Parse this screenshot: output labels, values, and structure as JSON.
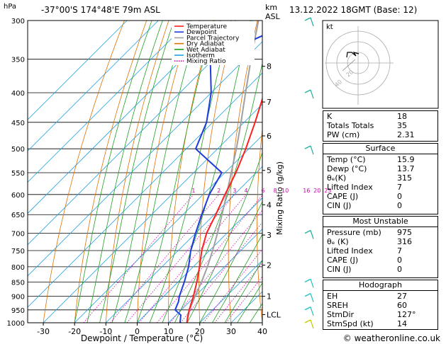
{
  "header": {
    "hpa_label": "hPa",
    "location": "-37°00'S  174°48'E  79m  ASL",
    "km_label": "km",
    "asl_label": "ASL",
    "datetime": "13.12.2022  18GMT  (Base: 12)"
  },
  "legend": [
    {
      "label": "Temperature",
      "color": "#ff2020",
      "style": "solid"
    },
    {
      "label": "Dewpoint",
      "color": "#1e3cdc",
      "style": "solid"
    },
    {
      "label": "Parcel Trajectory",
      "color": "#a0a0a0",
      "style": "solid"
    },
    {
      "label": "Dry Adiabat",
      "color": "#e07000",
      "style": "solid"
    },
    {
      "label": "Wet Adiabat",
      "color": "#20a020",
      "style": "solid"
    },
    {
      "label": "Isotherm",
      "color": "#20a0e0",
      "style": "solid"
    },
    {
      "label": "Mixing Ratio",
      "color": "#d000b0",
      "style": "dotted"
    }
  ],
  "chart_data": {
    "type": "skew-t",
    "xlabel": "Dewpoint / Temperature (°C)",
    "ylabel_right": "Mixing Ratio (g/kg)",
    "x_ticks": [
      -30,
      -20,
      -10,
      0,
      10,
      20,
      30,
      40
    ],
    "xlim": [
      -35,
      40
    ],
    "pressure_levels": [
      300,
      350,
      400,
      450,
      500,
      550,
      600,
      650,
      700,
      750,
      800,
      850,
      900,
      950,
      1000
    ],
    "ylim_hpa": [
      1000,
      300
    ],
    "height_km_ticks": [
      {
        "label": "8",
        "p": 360
      },
      {
        "label": "7",
        "p": 415
      },
      {
        "label": "6",
        "p": 475
      },
      {
        "label": "5",
        "p": 545
      },
      {
        "label": "4",
        "p": 625
      },
      {
        "label": "3",
        "p": 705
      },
      {
        "label": "2",
        "p": 795
      },
      {
        "label": "1",
        "p": 900
      },
      {
        "label": "LCL",
        "p": 968
      }
    ],
    "mixing_ratio_labels": [
      "1",
      "2",
      "3",
      "4",
      "6",
      "8",
      "10",
      "16",
      "20",
      "25"
    ],
    "mixing_ratio_values": [
      1,
      2,
      3,
      4,
      6,
      8,
      10,
      16,
      20,
      25
    ],
    "temperature": [
      {
        "p": 1000,
        "t": 15.9
      },
      {
        "p": 950,
        "t": 12.5
      },
      {
        "p": 900,
        "t": 9.5
      },
      {
        "p": 850,
        "t": 6.0
      },
      {
        "p": 800,
        "t": 2.0
      },
      {
        "p": 750,
        "t": -2.5
      },
      {
        "p": 700,
        "t": -6.5
      },
      {
        "p": 650,
        "t": -9.5
      },
      {
        "p": 600,
        "t": -13.0
      },
      {
        "p": 550,
        "t": -16.5
      },
      {
        "p": 500,
        "t": -21.0
      },
      {
        "p": 450,
        "t": -26.5
      },
      {
        "p": 400,
        "t": -33.0
      },
      {
        "p": 350,
        "t": -41.0
      },
      {
        "p": 300,
        "t": -49.0
      }
    ],
    "dewpoint": [
      {
        "p": 1000,
        "t": 13.7
      },
      {
        "p": 970,
        "t": 11.5
      },
      {
        "p": 950,
        "t": 8.0
      },
      {
        "p": 920,
        "t": 6.5
      },
      {
        "p": 900,
        "t": 5.0
      },
      {
        "p": 850,
        "t": 2.0
      },
      {
        "p": 800,
        "t": -1.5
      },
      {
        "p": 750,
        "t": -6.0
      },
      {
        "p": 700,
        "t": -10.0
      },
      {
        "p": 650,
        "t": -14.0
      },
      {
        "p": 600,
        "t": -18.0
      },
      {
        "p": 550,
        "t": -21.0
      },
      {
        "p": 500,
        "t": -37.0
      },
      {
        "p": 450,
        "t": -42.0
      },
      {
        "p": 400,
        "t": -50.0
      },
      {
        "p": 350,
        "t": -61.0
      },
      {
        "p": 300,
        "t": -46.0
      }
    ],
    "parcel": [
      {
        "p": 1000,
        "t": 15.9
      },
      {
        "p": 968,
        "t": 13.5
      },
      {
        "p": 900,
        "t": 10.0
      },
      {
        "p": 850,
        "t": 7.5
      },
      {
        "p": 800,
        "t": 4.5
      },
      {
        "p": 750,
        "t": 1.0
      },
      {
        "p": 700,
        "t": -3.0
      },
      {
        "p": 650,
        "t": -7.5
      },
      {
        "p": 600,
        "t": -12.5
      },
      {
        "p": 550,
        "t": -18.0
      },
      {
        "p": 500,
        "t": -24.0
      },
      {
        "p": 450,
        "t": -31.0
      },
      {
        "p": 400,
        "t": -39.0
      },
      {
        "p": 350,
        "t": -48.0
      },
      {
        "p": 300,
        "t": -58.0
      }
    ],
    "wind_profile_pressures": [
      300,
      400,
      500,
      700,
      850,
      900,
      950,
      1000
    ]
  },
  "hodograph": {
    "unit": "kt",
    "ring_labels": [
      "20",
      "40"
    ]
  },
  "indices": [
    {
      "label": "K",
      "value": "18"
    },
    {
      "label": "Totals Totals",
      "value": "35"
    },
    {
      "label": "PW (cm)",
      "value": "2.31"
    }
  ],
  "surface": {
    "title": "Surface",
    "rows": [
      {
        "label": "Temp (°C)",
        "value": "15.9"
      },
      {
        "label": "Dewp (°C)",
        "value": "13.7"
      },
      {
        "label": "θₑ(K)",
        "value": "315"
      },
      {
        "label": "Lifted Index",
        "value": "7"
      },
      {
        "label": "CAPE (J)",
        "value": "0"
      },
      {
        "label": "CIN (J)",
        "value": "0"
      }
    ]
  },
  "most_unstable": {
    "title": "Most Unstable",
    "rows": [
      {
        "label": "Pressure (mb)",
        "value": "975"
      },
      {
        "label": "θₑ (K)",
        "value": "316"
      },
      {
        "label": "Lifted Index",
        "value": "7"
      },
      {
        "label": "CAPE (J)",
        "value": "0"
      },
      {
        "label": "CIN (J)",
        "value": "0"
      }
    ]
  },
  "hodo_table": {
    "title": "Hodograph",
    "rows": [
      {
        "label": "EH",
        "value": "27"
      },
      {
        "label": "SREH",
        "value": "60"
      },
      {
        "label": "StmDir",
        "value": "127°"
      },
      {
        "label": "StmSpd (kt)",
        "value": "14"
      }
    ]
  },
  "copyright": "© weatheronline.co.uk"
}
